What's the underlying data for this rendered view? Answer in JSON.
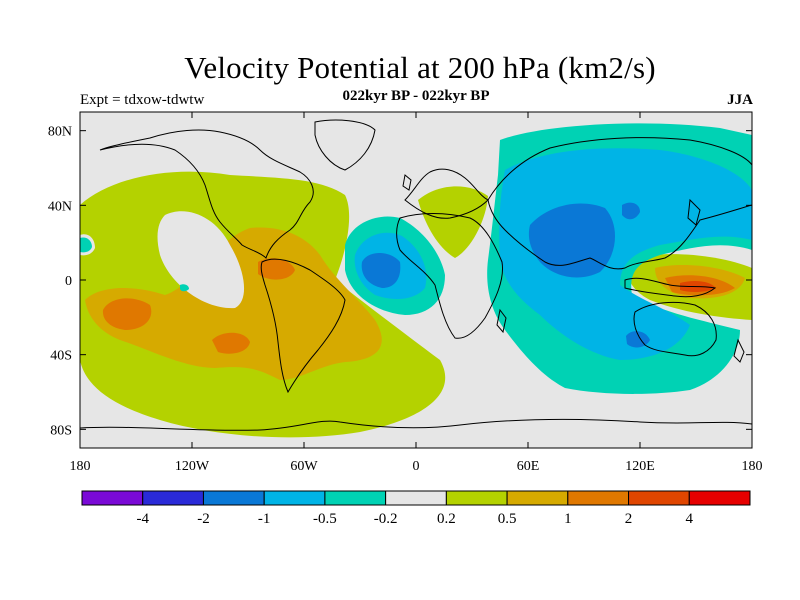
{
  "header": {
    "title": "Velocity Potential at 200 hPa (km2/s)",
    "subtitle": "022kyr BP - 022kyr BP",
    "left_label": "Expt = tdxow-tdwtw",
    "right_label": "JJA"
  },
  "map": {
    "projection": "cylindrical-equidistant",
    "lon_range": [
      -180,
      180
    ],
    "lat_range": [
      -90,
      90
    ],
    "x_ticks": [
      {
        "lon": -180,
        "label": "180"
      },
      {
        "lon": -120,
        "label": "120W"
      },
      {
        "lon": -60,
        "label": "60W"
      },
      {
        "lon": 0,
        "label": "0"
      },
      {
        "lon": 60,
        "label": "60E"
      },
      {
        "lon": 120,
        "label": "120E"
      },
      {
        "lon": 180,
        "label": "180"
      }
    ],
    "y_ticks": [
      {
        "lat": 80,
        "label": "80N"
      },
      {
        "lat": 40,
        "label": "40N"
      },
      {
        "lat": 0,
        "label": "0"
      },
      {
        "lat": -40,
        "label": "40S"
      },
      {
        "lat": -80,
        "label": "80S"
      }
    ],
    "background_color": "#e6e6e6",
    "coastline_color": "#000000"
  },
  "colorbar": {
    "colors": [
      "#7a0ad6",
      "#2a2ad8",
      "#0a78d6",
      "#00b4e6",
      "#00d2b4",
      "#e6e6e6",
      "#b4d200",
      "#d6aa00",
      "#e07800",
      "#e04600",
      "#e60000"
    ],
    "labels": [
      "-4",
      "-2",
      "-1",
      "-0.5",
      "-0.2",
      "0.2",
      "0.5",
      "1",
      "2",
      "4"
    ]
  }
}
